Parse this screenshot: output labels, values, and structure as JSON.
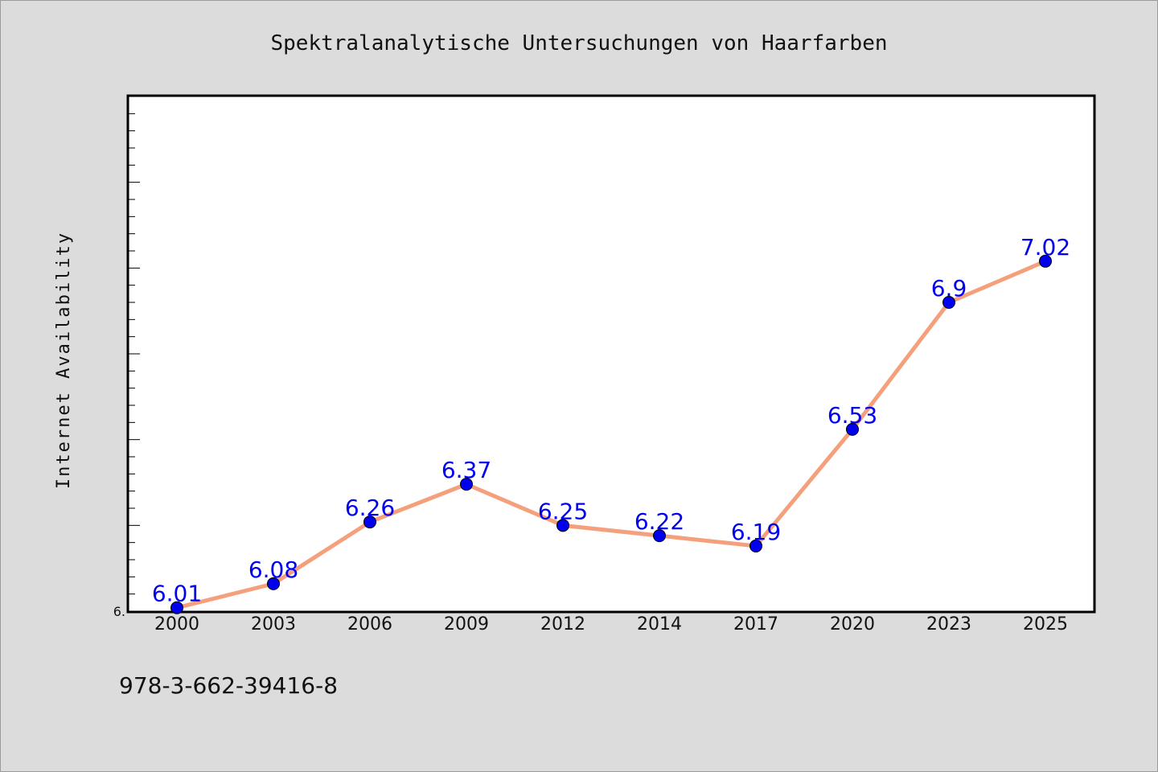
{
  "chart_data": {
    "type": "line",
    "title": "Spektralanalytische Untersuchungen von Haarfarben",
    "xlabel": "",
    "ylabel": "Internet Availability",
    "categories": [
      "2000",
      "2003",
      "2006",
      "2009",
      "2012",
      "2014",
      "2017",
      "2020",
      "2023",
      "2025"
    ],
    "series": [
      {
        "values": [
          6.01,
          6.08,
          6.26,
          6.37,
          6.25,
          6.22,
          6.19,
          6.53,
          6.9,
          7.02
        ]
      }
    ],
    "data_labels": [
      "6.01",
      "6.08",
      "6.26",
      "6.37",
      "6.25",
      "6.22",
      "6.19",
      "6.53",
      "6.9",
      "7.02"
    ],
    "ylim": [
      6.0,
      7.5
    ],
    "y_tick_labels": [
      {
        "value": 6.0,
        "label": "6."
      }
    ],
    "grid": false,
    "line_color": "#f4a07c",
    "marker_color": "#0000ee",
    "label_color": "#0000ee"
  },
  "footer": {
    "isbn": "978-3-662-39416-8"
  }
}
